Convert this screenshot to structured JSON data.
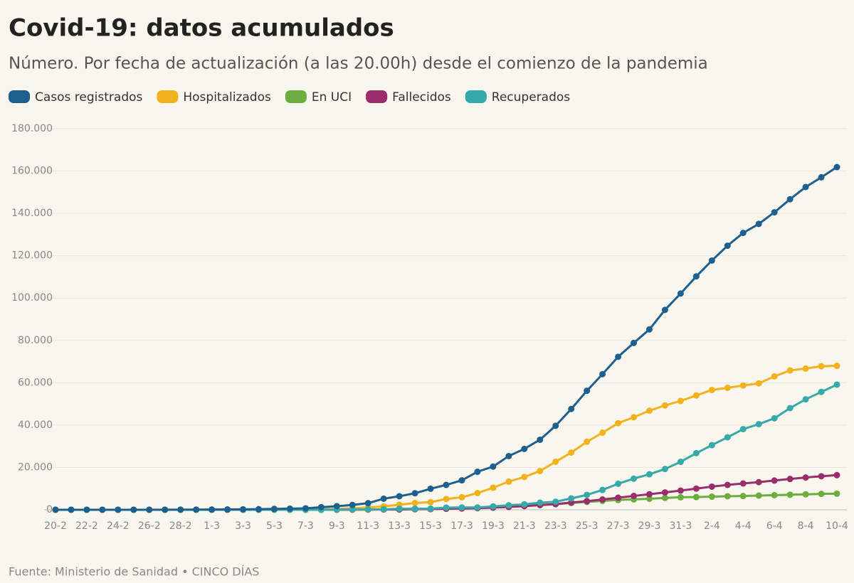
{
  "chart_data": {
    "type": "line",
    "title": "Covid-19: datos acumulados",
    "subtitle": "Número. Por fecha de actualización (a las 20.00h) desde el comienzo de la pandemia",
    "source": "Fuente: Ministerio de Sanidad • CINCO DÍAS",
    "categories": [
      "20-2",
      null,
      "22-2",
      null,
      "24-2",
      null,
      "26-2",
      null,
      "28-2",
      null,
      "1-3",
      null,
      "3-3",
      null,
      "5-3",
      null,
      "7-3",
      null,
      "9-3",
      null,
      "11-3",
      null,
      "13-3",
      null,
      "15-3",
      null,
      "17-3",
      null,
      "19-3",
      null,
      "21-3",
      null,
      "23-3",
      null,
      "25-3",
      null,
      "27-3",
      null,
      "29-3",
      null,
      "31-3",
      null,
      "2-4",
      null,
      "4-4",
      null,
      "6-4",
      null,
      "8-4",
      null,
      "10-4"
    ],
    "series": [
      {
        "name": "Casos registrados",
        "color": "#1d6090",
        "values": [
          2,
          2,
          2,
          3,
          6,
          12,
          17,
          32,
          45,
          84,
          120,
          165,
          228,
          282,
          401,
          525,
          674,
          1231,
          1695,
          2277,
          3146,
          5232,
          6391,
          7798,
          9942,
          11748,
          13910,
          17963,
          20410,
          25374,
          28768,
          33089,
          39673,
          47610,
          56188,
          64059,
          72248,
          78797,
          85195,
          94417,
          102136,
          110238,
          117710,
          124736,
          130759,
          135032,
          140510,
          146690,
          152446,
          157022,
          161852
        ]
      },
      {
        "name": "Hospitalizados",
        "color": "#f1b21c",
        "values": [
          0,
          0,
          0,
          0,
          0,
          0,
          0,
          0,
          0,
          0,
          0,
          0,
          0,
          0,
          10,
          40,
          100,
          200,
          400,
          700,
          1100,
          1600,
          2400,
          3200,
          3600,
          5100,
          5900,
          7900,
          10400,
          13300,
          15500,
          18300,
          22700,
          27000,
          32100,
          36400,
          40900,
          43700,
          46800,
          49300,
          51400,
          54000,
          56600,
          57600,
          58700,
          59700,
          63000,
          65800,
          66700,
          67800,
          68000
        ]
      },
      {
        "name": "En UCI",
        "color": "#6cad3f",
        "values": [
          0,
          0,
          0,
          0,
          0,
          0,
          0,
          0,
          0,
          0,
          0,
          0,
          0,
          0,
          0,
          0,
          0,
          10,
          30,
          60,
          100,
          190,
          200,
          300,
          400,
          500,
          700,
          900,
          1100,
          1600,
          1800,
          2300,
          2600,
          3200,
          3700,
          4200,
          4600,
          4900,
          5200,
          5600,
          5900,
          6000,
          6200,
          6400,
          6500,
          6700,
          6900,
          7100,
          7300,
          7500,
          7600
        ]
      },
      {
        "name": "Fallecidos",
        "color": "#9a2e6c",
        "values": [
          0,
          0,
          0,
          0,
          0,
          0,
          0,
          0,
          0,
          0,
          1,
          2,
          3,
          5,
          8,
          10,
          17,
          28,
          35,
          55,
          84,
          120,
          136,
          288,
          309,
          491,
          598,
          767,
          1002,
          1326,
          1720,
          2182,
          2696,
          3434,
          4089,
          4858,
          5690,
          6528,
          7340,
          8189,
          9053,
          10003,
          10935,
          11744,
          12418,
          13055,
          13798,
          14555,
          15238,
          15843,
          16353
        ]
      },
      {
        "name": "Recuperados",
        "color": "#37a9a8",
        "values": [
          0,
          0,
          0,
          0,
          2,
          2,
          2,
          2,
          2,
          2,
          2,
          2,
          2,
          2,
          2,
          2,
          30,
          30,
          32,
          183,
          183,
          193,
          517,
          517,
          530,
          1028,
          1081,
          1107,
          1588,
          2125,
          2575,
          3355,
          3794,
          5367,
          7015,
          9357,
          12285,
          14709,
          16780,
          19259,
          22647,
          26743,
          30513,
          34219,
          38080,
          40437,
          43208,
          48021,
          52165,
          55668,
          59109
        ]
      }
    ],
    "ylim": [
      0,
      180000
    ],
    "yticks": [
      0,
      {
        "value": 20000,
        "label": "20.000"
      },
      {
        "value": 40000,
        "label": "40.000"
      },
      {
        "value": 60000,
        "label": "60.000"
      },
      {
        "value": 80000,
        "label": "80.000"
      },
      {
        "value": 100000,
        "label": "100.000"
      },
      {
        "value": 120000,
        "label": "120.000"
      },
      {
        "value": 140000,
        "label": "140.000"
      },
      {
        "value": 160000,
        "label": "160.000"
      },
      {
        "value": 180000,
        "label": "180.000"
      }
    ],
    "grid": true
  }
}
